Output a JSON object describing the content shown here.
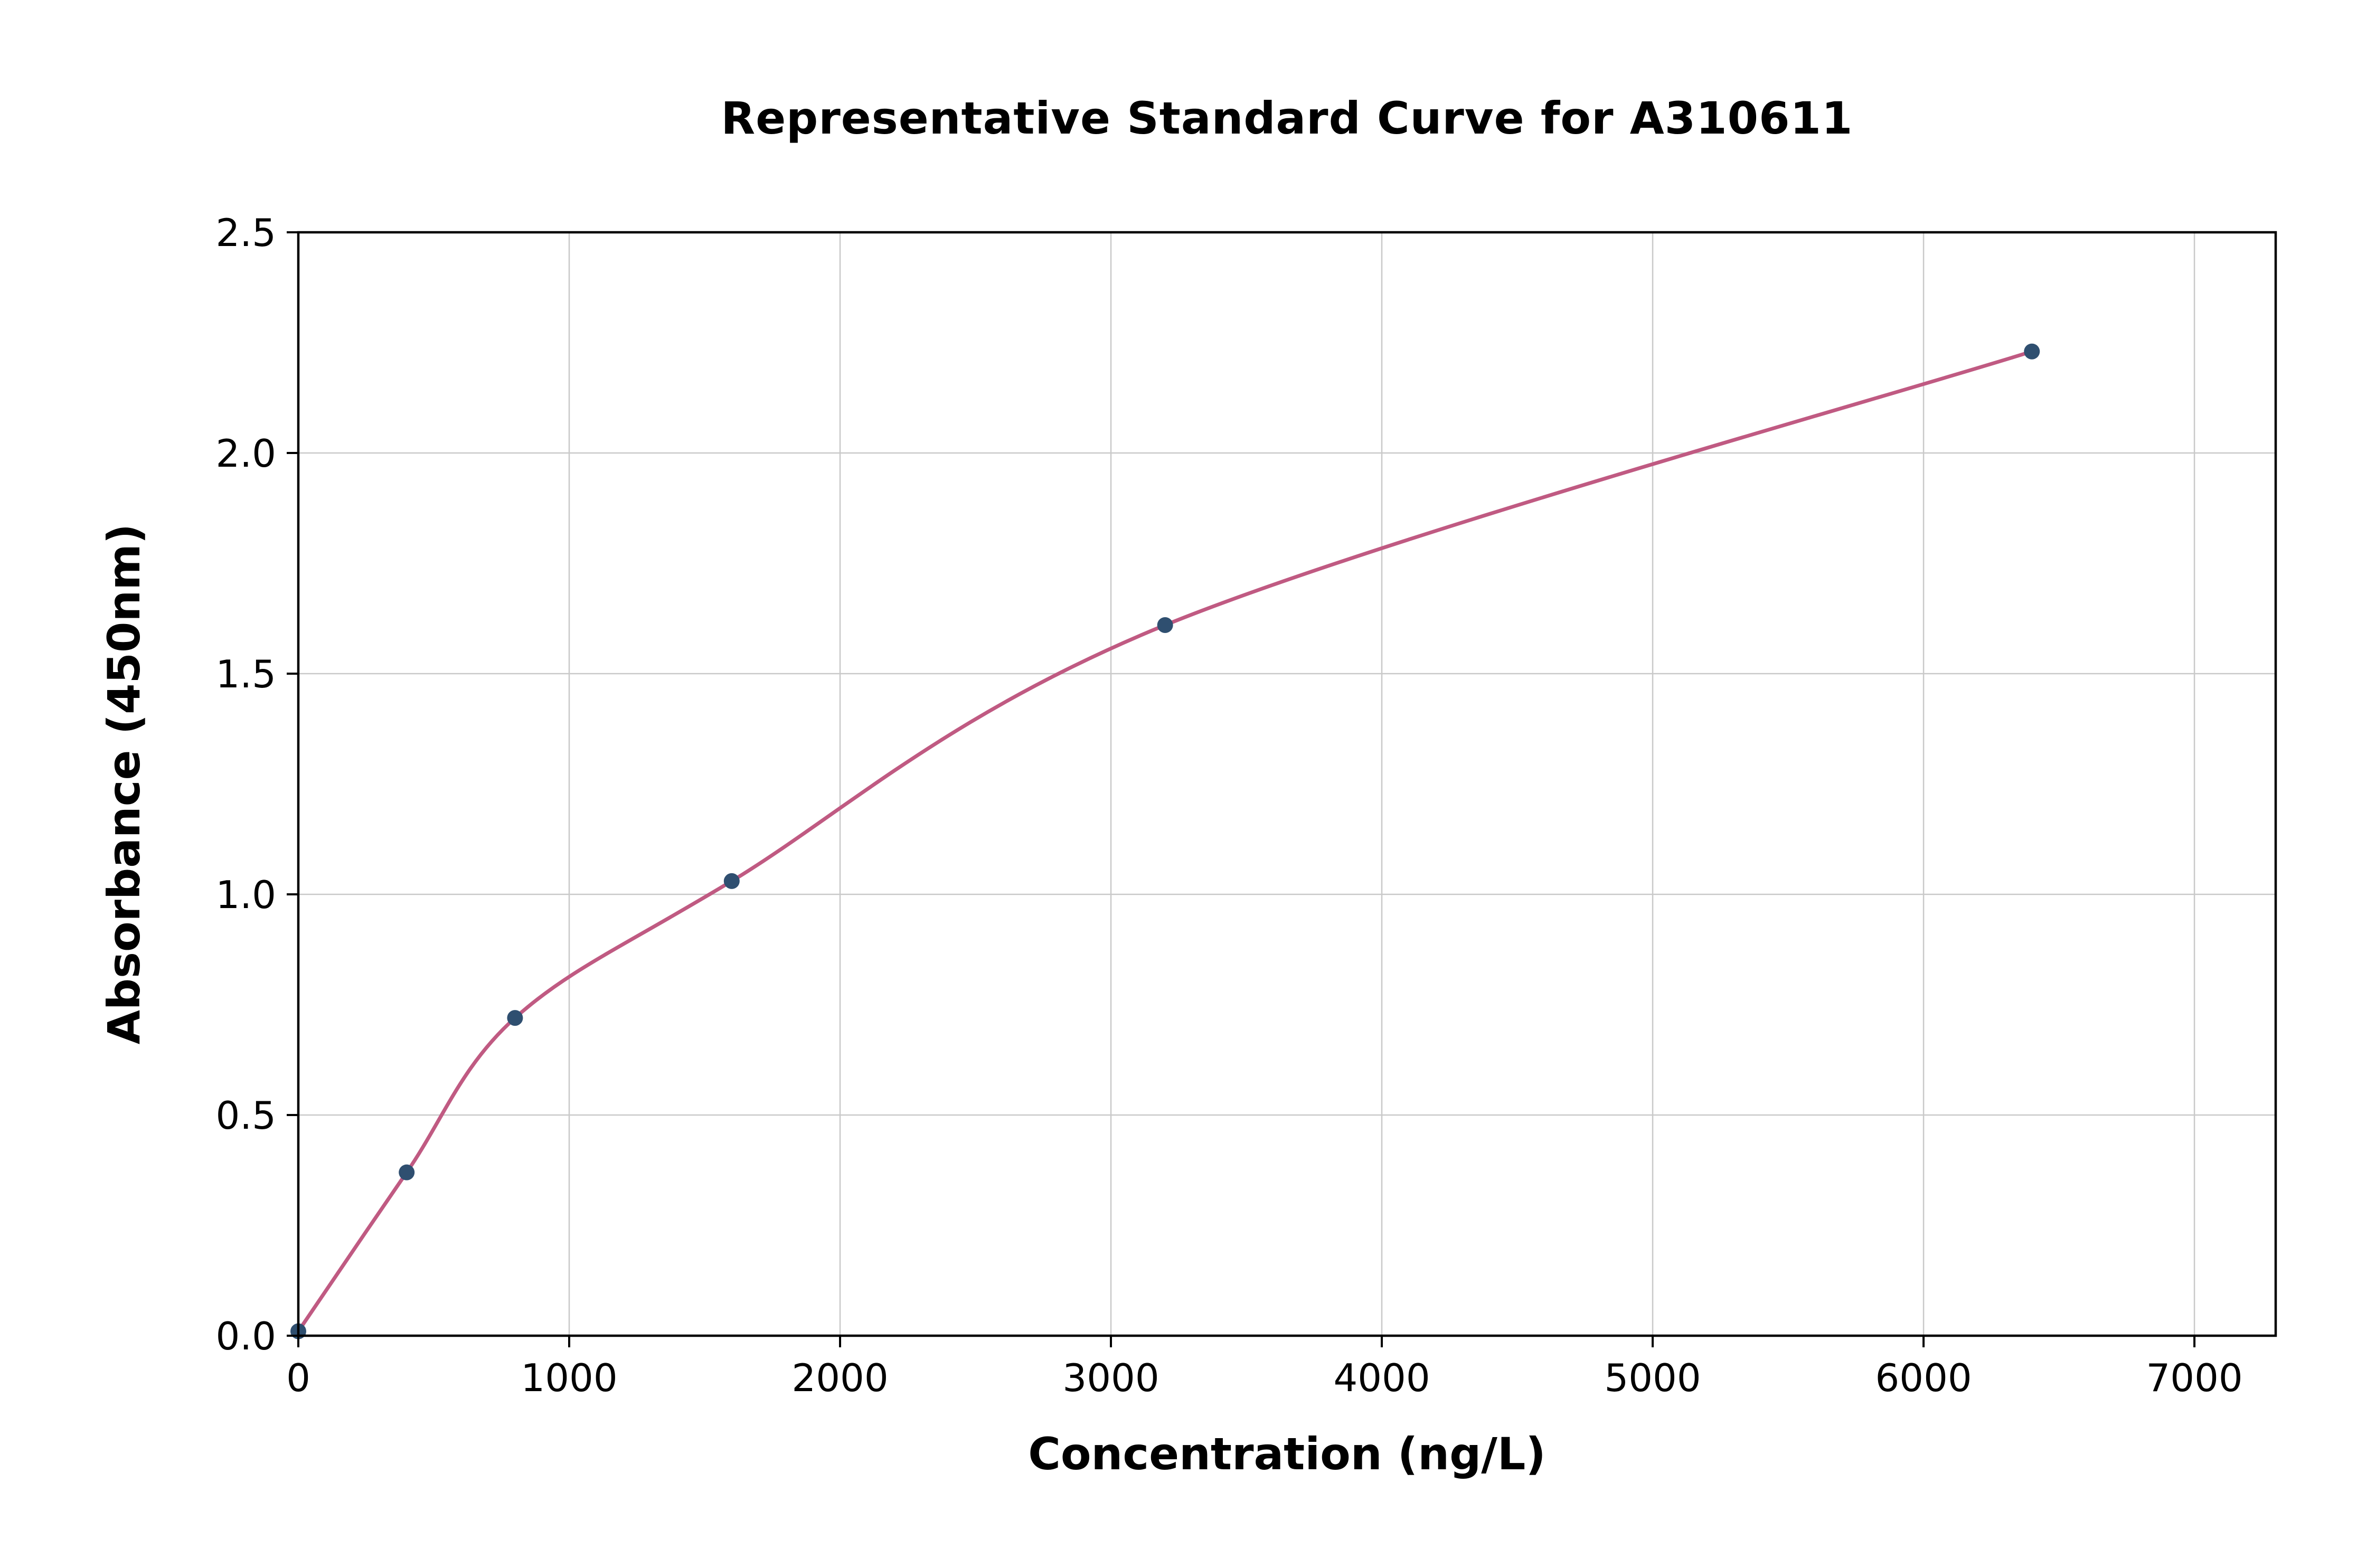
{
  "chart_data": {
    "type": "scatter",
    "title": "Representative Standard Curve for A310611",
    "xlabel": "Concentration (ng/L)",
    "ylabel": "Absorbance (450nm)",
    "xlim": [
      0,
      7300
    ],
    "ylim": [
      0,
      2.5
    ],
    "x_ticks": [
      0,
      1000,
      2000,
      3000,
      4000,
      5000,
      6000,
      7000
    ],
    "y_ticks": [
      0.0,
      0.5,
      1.0,
      1.5,
      2.0,
      2.5
    ],
    "grid": true,
    "legend": "none",
    "series": [
      {
        "name": "standard-points",
        "type": "scatter",
        "x": [
          0,
          400,
          800,
          1600,
          3200,
          6400
        ],
        "y": [
          0.01,
          0.37,
          0.72,
          1.03,
          1.61,
          2.23
        ]
      },
      {
        "name": "fitted-curve",
        "type": "line",
        "x": [
          0,
          400,
          800,
          1600,
          3200,
          6400
        ],
        "y": [
          0.01,
          0.37,
          0.72,
          1.03,
          1.61,
          2.23
        ]
      }
    ],
    "colors": {
      "curve": "#c05a82",
      "points": "#2f4f70",
      "grid": "#c9c9c9",
      "axis": "#000000",
      "background": "#ffffff"
    }
  }
}
